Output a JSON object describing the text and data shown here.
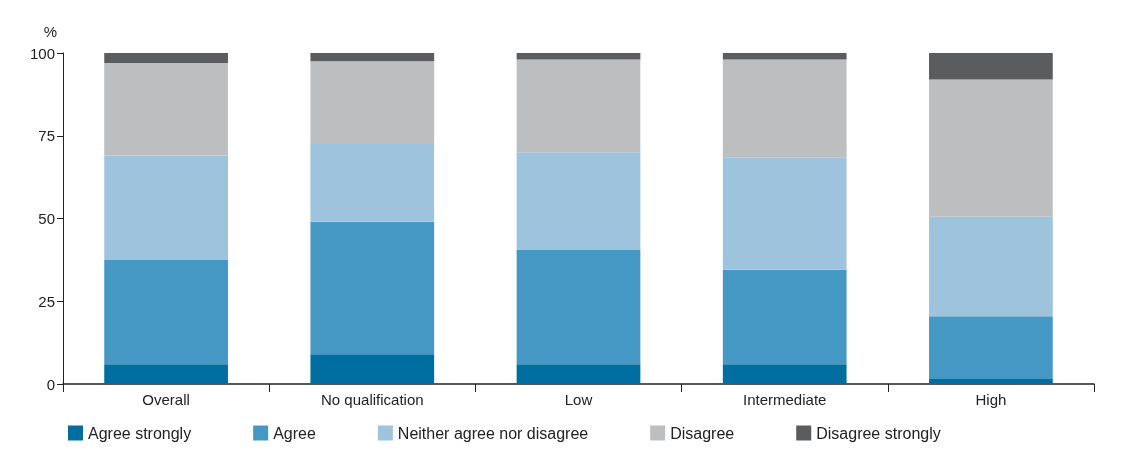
{
  "chart_data": {
    "type": "bar",
    "stacked": true,
    "ylabel": "%",
    "categories": [
      "Overall",
      "No qualification",
      "Low",
      "Intermediate",
      "High"
    ],
    "series": [
      {
        "name": "Agree strongly",
        "color": "#006ea0",
        "values": [
          6,
          9,
          6,
          6,
          1.5
        ]
      },
      {
        "name": "Agree",
        "color": "#4598c3",
        "values": [
          31.5,
          40,
          34.5,
          28.5,
          19
        ]
      },
      {
        "name": "Neither agree nor disagree",
        "color": "#9ec3dc",
        "values": [
          31.5,
          23.5,
          29.5,
          34,
          30
        ]
      },
      {
        "name": "Disagree",
        "color": "#bdbec0",
        "values": [
          28,
          25,
          28,
          29.5,
          41.5
        ]
      },
      {
        "name": "Disagree strongly",
        "color": "#5b5c5e",
        "values": [
          3,
          2.5,
          2,
          2,
          8
        ]
      }
    ],
    "ylim": [
      0,
      100
    ],
    "yticks": [
      0,
      25,
      50,
      75,
      100
    ],
    "grid": false,
    "legend": "bottom"
  }
}
